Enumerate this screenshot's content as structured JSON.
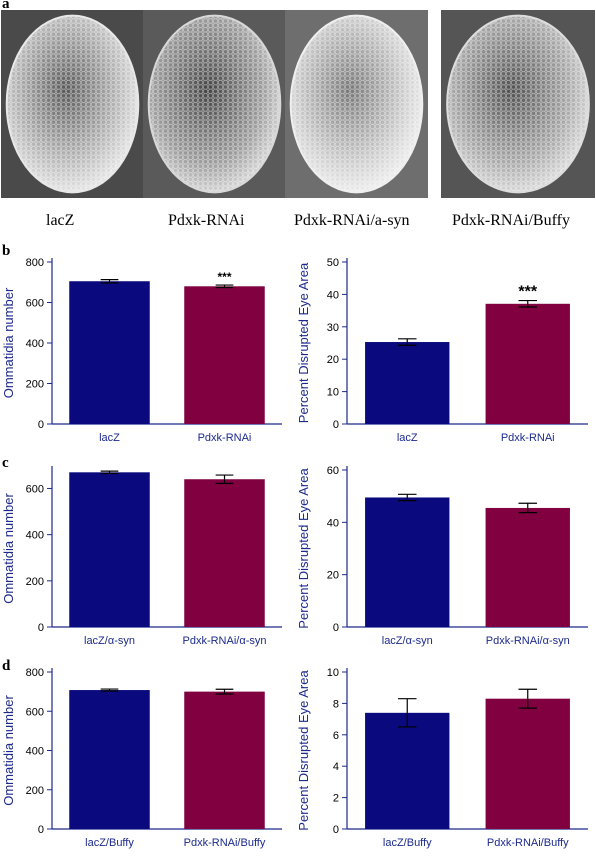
{
  "panels": {
    "a": "a",
    "b": "b",
    "c": "c",
    "d": "d"
  },
  "eye_images": [
    {
      "label": "lacZ",
      "icon": "compound-eye-sem-image"
    },
    {
      "label": "Pdxk-RNAi",
      "icon": "compound-eye-sem-image"
    },
    {
      "label": "Pdxk-RNAi/a-syn",
      "icon": "compound-eye-sem-image"
    },
    {
      "label": "Pdxk-RNAi/Buffy",
      "icon": "compound-eye-sem-image"
    }
  ],
  "colors": {
    "control_bar": "#0a0a7e",
    "treatment_bar": "#800040",
    "axis": "#1c2a8c"
  },
  "chart_data": [
    {
      "type": "bar",
      "panel": "b",
      "categories": [
        "lacZ",
        "Pdxk-RNAi"
      ],
      "values": [
        705,
        680
      ],
      "errors": [
        8,
        6
      ],
      "annotations": [
        "",
        "***"
      ],
      "ylabel": "Ommatidia number",
      "ylim": [
        0,
        800
      ],
      "yticks": [
        0,
        200,
        400,
        600,
        800
      ]
    },
    {
      "type": "bar",
      "panel": "b",
      "categories": [
        "lacZ",
        "Pdxk-RNAi"
      ],
      "values": [
        25.3,
        37.1
      ],
      "errors": [
        1.0,
        1.0
      ],
      "annotations": [
        "",
        "***"
      ],
      "ylabel": "Percent Disrupted Eye Area",
      "ylim": [
        0,
        50
      ],
      "yticks": [
        0,
        10,
        20,
        30,
        40,
        50
      ]
    },
    {
      "type": "bar",
      "panel": "c",
      "categories": [
        "lacZ/α-syn",
        "Pdxk-RNAi/α-syn"
      ],
      "values": [
        670,
        640
      ],
      "errors": [
        5,
        18
      ],
      "annotations": [
        "",
        ""
      ],
      "ylabel": "Ommatidia number",
      "ylim": [
        0,
        680
      ],
      "yticks": [
        0,
        200,
        400,
        600
      ]
    },
    {
      "type": "bar",
      "panel": "c",
      "categories": [
        "lacZ/α-syn",
        "Pdxk-RNAi/α-syn"
      ],
      "values": [
        49.5,
        45.5
      ],
      "errors": [
        1.2,
        1.8
      ],
      "annotations": [
        "",
        ""
      ],
      "ylabel": "Percent Disrupted Eye Area",
      "ylim": [
        0,
        60
      ],
      "yticks": [
        0,
        20,
        40,
        60
      ]
    },
    {
      "type": "bar",
      "panel": "d",
      "categories": [
        "lacZ/Buffy",
        "Pdxk-RNAi/Buffy"
      ],
      "values": [
        708,
        700
      ],
      "errors": [
        5,
        12
      ],
      "annotations": [
        "",
        ""
      ],
      "ylabel": "Ommatidia number",
      "ylim": [
        0,
        800
      ],
      "yticks": [
        0,
        200,
        400,
        600,
        800
      ]
    },
    {
      "type": "bar",
      "panel": "d",
      "categories": [
        "lacZ/Buffy",
        "Pdxk-RNAi/Buffy"
      ],
      "values": [
        7.4,
        8.3
      ],
      "errors": [
        0.9,
        0.6
      ],
      "annotations": [
        "",
        ""
      ],
      "ylabel": "Percent Disrupted Eye Area",
      "ylim": [
        0,
        10
      ],
      "yticks": [
        0,
        2,
        4,
        6,
        8,
        10
      ]
    }
  ]
}
